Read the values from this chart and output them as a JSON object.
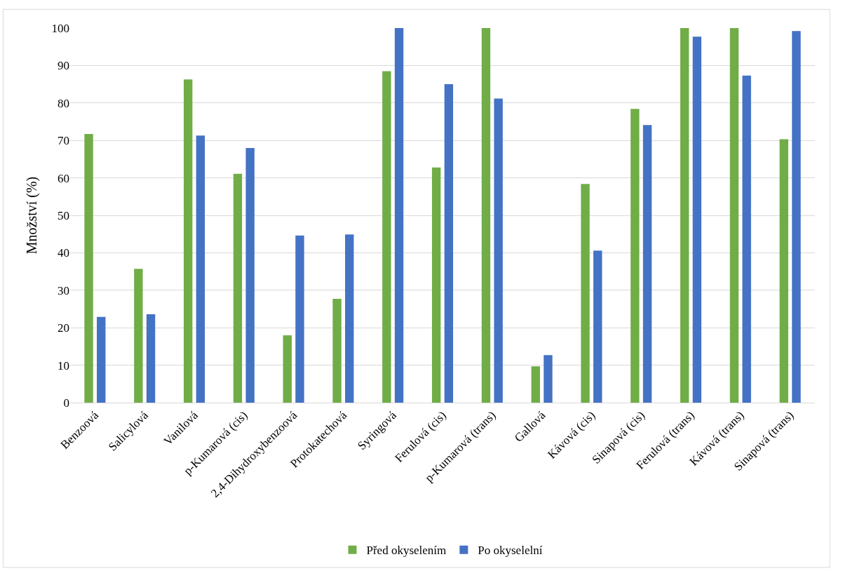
{
  "chart_data": {
    "type": "bar",
    "ylabel": "Množství (%)",
    "categories": [
      "Benzoová",
      "Salicylová",
      "Vanilová",
      "p-Kumarová (cis)",
      "2,4-Dihydroxybenzoová",
      "Protokatechová",
      "Syringová",
      "Ferulová (cis)",
      "p-Kumarová (trans)",
      "Gallová",
      "Kávová (cis)",
      "Sinapová (cis)",
      "Ferulová (trans)",
      "Kávová (trans)",
      "Sinapová (trans)"
    ],
    "series": [
      {
        "name": "Před okyselením",
        "color": "#70ad47",
        "values": [
          71.7,
          35.7,
          86.3,
          61.1,
          18.0,
          27.7,
          88.5,
          62.8,
          100,
          9.7,
          58.4,
          78.4,
          100,
          100,
          70.3
        ]
      },
      {
        "name": "Po okyselelní",
        "color": "#4472c4",
        "values": [
          22.9,
          23.6,
          71.3,
          68.0,
          44.6,
          44.9,
          100,
          85.0,
          81.2,
          12.7,
          40.6,
          74.1,
          97.7,
          87.3,
          99.2
        ]
      }
    ],
    "ylim": [
      0,
      100
    ],
    "yticks": [
      0,
      10,
      20,
      30,
      40,
      50,
      60,
      70,
      80,
      90,
      100
    ],
    "grid": "y",
    "legend": "bottom"
  }
}
